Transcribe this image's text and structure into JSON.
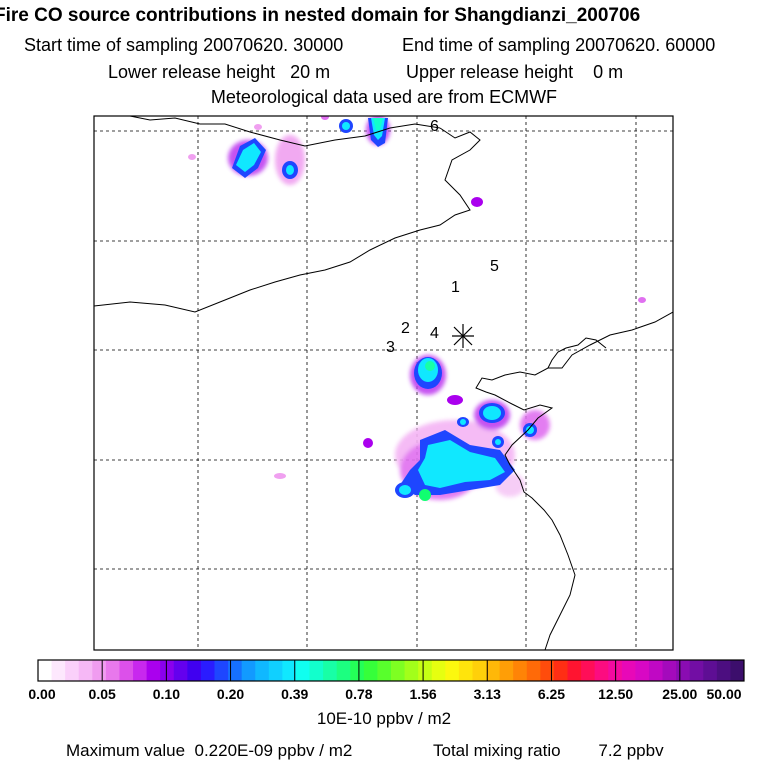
{
  "header": {
    "title": "Fire CO source contributions in nested domain for Shangdianzi_200706",
    "start_label": "Start time of sampling",
    "start_value": "20070620. 30000",
    "end_label": "End time of sampling",
    "end_value": "20070620. 60000",
    "lower_label": "Lower release height",
    "lower_value": "20 m",
    "upper_label": "Upper release height",
    "upper_value": "0 m",
    "meteo": "Meteorological data used are from ECMWF"
  },
  "map": {
    "site_marker": "asterisk",
    "station_labels": [
      "1",
      "2",
      "3",
      "4",
      "5",
      "6"
    ]
  },
  "colorbar": {
    "tick_labels": [
      "0.00",
      "0.05",
      "0.10",
      "0.20",
      "0.39",
      "0.78",
      "1.56",
      "3.13",
      "6.25",
      "12.50",
      "25.00",
      "50.00"
    ],
    "unit": "10E-10 ppbv / m2",
    "colors": [
      "#ffffff",
      "#fde8fd",
      "#fad0fa",
      "#f6b8f6",
      "#f09cf0",
      "#e878ec",
      "#dc50ea",
      "#c828ee",
      "#aa00ee",
      "#8a00ee",
      "#6400ee",
      "#4000f0",
      "#2a1cff",
      "#1e46ff",
      "#1670ff",
      "#129aff",
      "#10b8ff",
      "#10d0ff",
      "#10e8ff",
      "#10fff0",
      "#12ffcc",
      "#18ffa6",
      "#1cff80",
      "#24ff58",
      "#36ff3a",
      "#58ff2c",
      "#7eff22",
      "#a2ff1a",
      "#c6ff14",
      "#e6ff10",
      "#fcf80e",
      "#ffe40c",
      "#ffd00a",
      "#ffb808",
      "#ff9e06",
      "#ff8406",
      "#ff6a08",
      "#ff4c0c",
      "#ff2e14",
      "#ff1430",
      "#ff0e58",
      "#fc0c80",
      "#f40aa0",
      "#e808b8",
      "#d808c4",
      "#c008c4",
      "#a40abc",
      "#8a0cb2",
      "#720ea4",
      "#5e0e94",
      "#4c0e80",
      "#3c0e6c"
    ]
  },
  "footer": {
    "max_label": "Maximum value",
    "max_value": "0.220E-09 ppbv / m2",
    "total_label": "Total mixing ratio",
    "total_value": "7.2 ppbv"
  }
}
